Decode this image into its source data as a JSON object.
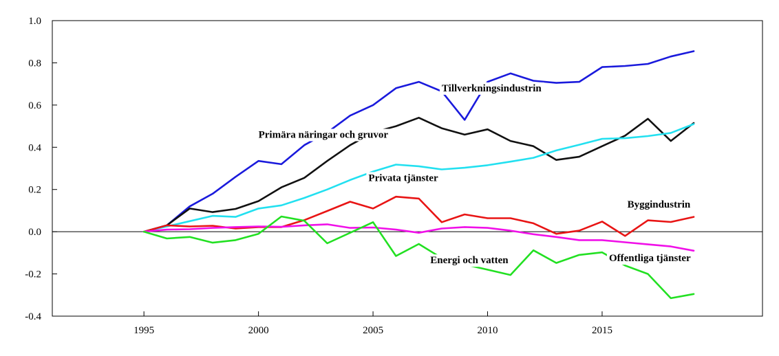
{
  "chart_data": {
    "type": "line",
    "title": "",
    "xlabel": "",
    "ylabel": "",
    "xlim": [
      1991,
      2022
    ],
    "ylim": [
      -0.4,
      1.0
    ],
    "yticks": [
      "1.0",
      "0.8",
      "0.6",
      "0.4",
      "0.2",
      "0.0",
      "-0.2",
      "-0.4"
    ],
    "ytick_values": [
      1.0,
      0.8,
      0.6,
      0.4,
      0.2,
      0.0,
      -0.2,
      -0.4
    ],
    "xticks": [
      "1995",
      "2000",
      "2005",
      "2010",
      "2015"
    ],
    "xtick_values": [
      1995,
      2000,
      2005,
      2010,
      2015
    ],
    "x": [
      1995,
      1996,
      1997,
      1998,
      1999,
      2000,
      2001,
      2002,
      2003,
      2004,
      2005,
      2006,
      2007,
      2008,
      2009,
      2010,
      2011,
      2012,
      2013,
      2014,
      2015,
      2016,
      2017,
      2018,
      2019
    ],
    "zero_line": true,
    "grid": false,
    "series": [
      {
        "name": "Tillverkningsindustrin",
        "color": "#1a1adc",
        "values": [
          0.0,
          0.03,
          0.12,
          0.18,
          0.26,
          0.335,
          0.32,
          0.41,
          0.47,
          0.55,
          0.6,
          0.68,
          0.71,
          0.665,
          0.53,
          0.71,
          0.75,
          0.715,
          0.705,
          0.71,
          0.78,
          0.785,
          0.795,
          0.83,
          0.855
        ]
      },
      {
        "name": "Primära näringar och gruvor",
        "color": "#111111",
        "values": [
          0.0,
          0.03,
          0.11,
          0.093,
          0.108,
          0.145,
          0.21,
          0.255,
          0.335,
          0.41,
          0.47,
          0.5,
          0.54,
          0.49,
          0.46,
          0.485,
          0.43,
          0.405,
          0.34,
          0.355,
          0.405,
          0.455,
          0.535,
          0.43,
          0.515
        ]
      },
      {
        "name": "Privata tjänster",
        "color": "#22e0f0",
        "values": [
          0.0,
          0.025,
          0.05,
          0.075,
          0.07,
          0.11,
          0.125,
          0.16,
          0.2,
          0.245,
          0.285,
          0.318,
          0.31,
          0.295,
          0.303,
          0.315,
          0.332,
          0.35,
          0.385,
          0.412,
          0.44,
          0.443,
          0.453,
          0.468,
          0.51
        ]
      },
      {
        "name": "Byggindustrin",
        "color": "#e81414",
        "values": [
          0.0,
          0.03,
          0.025,
          0.028,
          0.015,
          0.022,
          0.022,
          0.055,
          0.098,
          0.142,
          0.11,
          0.166,
          0.157,
          0.045,
          0.082,
          0.064,
          0.064,
          0.04,
          -0.01,
          0.005,
          0.048,
          -0.02,
          0.054,
          0.046,
          0.07
        ]
      },
      {
        "name": "Offentliga tjänster",
        "color": "#f010e8",
        "values": [
          0.0,
          0.01,
          0.012,
          0.018,
          0.022,
          0.025,
          0.023,
          0.03,
          0.035,
          0.018,
          0.02,
          0.01,
          -0.005,
          0.015,
          0.022,
          0.018,
          0.005,
          -0.012,
          -0.025,
          -0.04,
          -0.04,
          -0.05,
          -0.06,
          -0.07,
          -0.09
        ]
      },
      {
        "name": "Energi och vatten",
        "color": "#22e022",
        "values": [
          0.0,
          -0.032,
          -0.025,
          -0.052,
          -0.04,
          -0.01,
          0.072,
          0.052,
          -0.055,
          -0.005,
          0.045,
          -0.115,
          -0.058,
          -0.125,
          -0.155,
          -0.18,
          -0.205,
          -0.088,
          -0.148,
          -0.11,
          -0.098,
          -0.16,
          -0.2,
          -0.315,
          -0.295
        ]
      }
    ],
    "annotations": [
      {
        "text": "Tillverkningsindustrin",
        "series": "Tillverkningsindustrin",
        "x": 2008.0,
        "y": 0.665
      },
      {
        "text": "Primära näringar och gruvor",
        "series": "Primära näringar och gruvor",
        "x": 2000.0,
        "y": 0.445
      },
      {
        "text": "Privata tjänster",
        "series": "Privata tjänster",
        "x": 2004.8,
        "y": 0.24
      },
      {
        "text": "Byggindustrin",
        "series": "Byggindustrin",
        "x": 2016.1,
        "y": 0.115
      },
      {
        "text": "Energi och vatten",
        "series": "Energi och vatten",
        "x": 2007.5,
        "y": -0.15
      },
      {
        "text": "Offentliga tjänster",
        "series": "Offentliga tjänster",
        "x": 2015.3,
        "y": -0.14
      }
    ]
  }
}
